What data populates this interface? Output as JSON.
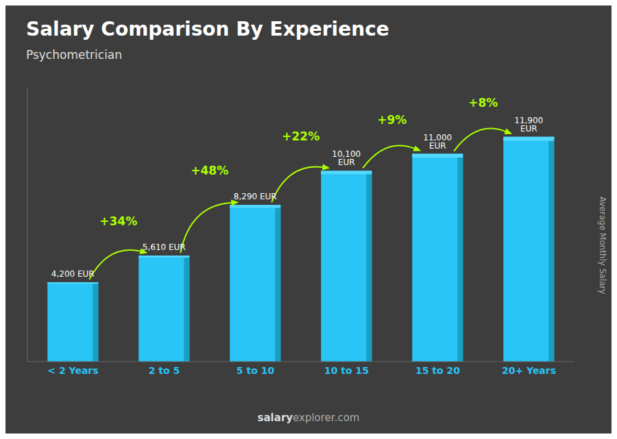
{
  "chart_data": {
    "type": "bar",
    "title": "Salary Comparison By Experience",
    "subtitle": "Psychometrician",
    "ylabel": "Average Monthly Salary",
    "categories": [
      "< 2 Years",
      "2 to 5",
      "5 to 10",
      "10 to 15",
      "15 to 20",
      "20+ Years"
    ],
    "values": [
      4200,
      5610,
      8290,
      10100,
      11000,
      11900
    ],
    "value_labels": [
      "4,200 EUR",
      "5,610 EUR",
      "8,290 EUR",
      "10,100 EUR",
      "11,000 EUR",
      "11,900 EUR"
    ],
    "data_labels": true,
    "color": "#29c5f6",
    "ylim": [
      0,
      14500
    ],
    "yticks": [],
    "tick_labels": "x",
    "grid": false,
    "annotations": [
      {
        "text": "+34%",
        "from": "< 2 Years",
        "to": "2 to 5"
      },
      {
        "text": "+48%",
        "from": "2 to 5",
        "to": "5 to 10"
      },
      {
        "text": "+22%",
        "from": "5 to 10",
        "to": "10 to 15"
      },
      {
        "text": "+9%",
        "from": "10 to 15",
        "to": "15 to 20"
      },
      {
        "text": "+8%",
        "from": "15 to 20",
        "to": "20+ Years"
      }
    ],
    "watermark": [
      "salary",
      "explorer.com"
    ]
  }
}
